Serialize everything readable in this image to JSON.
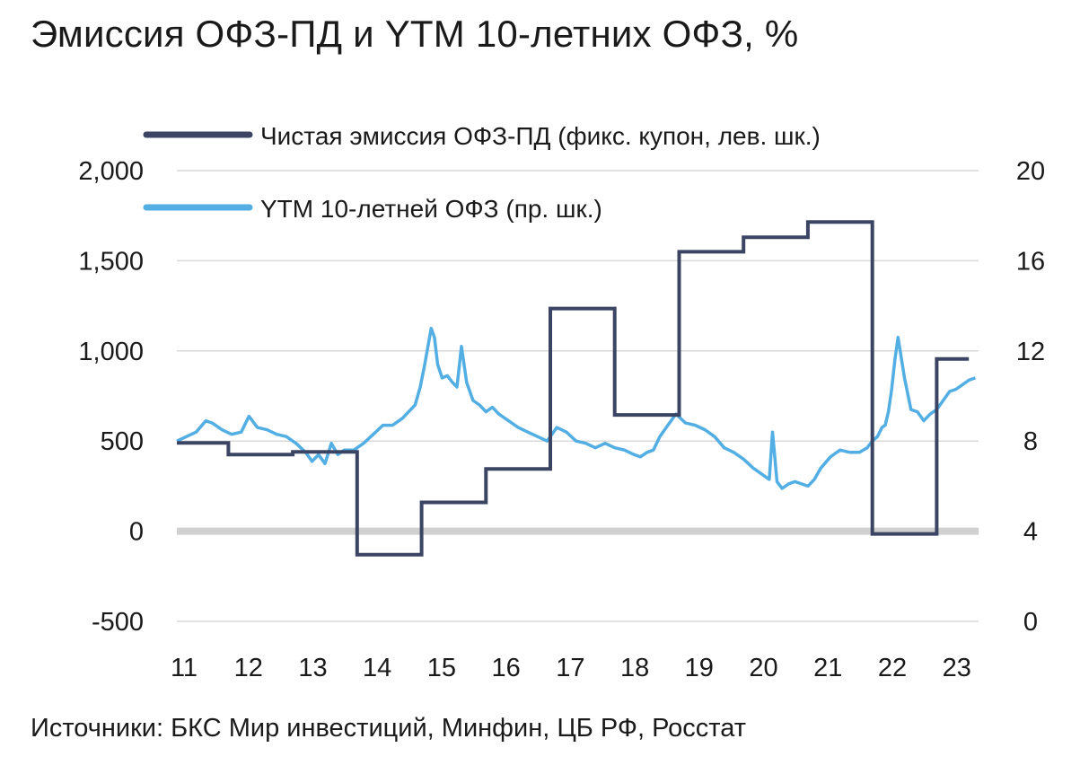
{
  "title": "Эмиссия ОФЗ-ПД и YTM 10-летних ОФЗ, %",
  "source": "Источники: БКС Мир инвестиций, Минфин, ЦБ РФ, Росстат",
  "colors": {
    "emission": "#3b4563",
    "ytm": "#52aee3",
    "grid": "#d9d9d9",
    "zero": "#d0d0d0"
  },
  "chart_data": {
    "type": "line",
    "x_ticks": [
      "11",
      "12",
      "13",
      "14",
      "15",
      "16",
      "17",
      "18",
      "19",
      "20",
      "21",
      "22",
      "23"
    ],
    "xlim": [
      2011,
      2023.45
    ],
    "y_left": {
      "ylim": [
        -500,
        2000
      ],
      "ticks": [
        "-500",
        "0",
        "500",
        "1,000",
        "1,500",
        "2,000"
      ],
      "tick_values": [
        -500,
        0,
        500,
        1000,
        1500,
        2000
      ]
    },
    "y_right": {
      "ylim": [
        0,
        20
      ],
      "ticks": [
        "0",
        "4",
        "8",
        "12",
        "16",
        "20"
      ],
      "tick_values": [
        0,
        4,
        8,
        12,
        16,
        20
      ]
    },
    "legend_placement": "top",
    "grid": true,
    "series": [
      {
        "name": "Чистая эмиссия ОФЗ-ПД (фикс. купон, лев. шк.)",
        "axis": "left",
        "style": "step",
        "x": [
          2011.0,
          2011.8,
          2011.8,
          2012.8,
          2012.8,
          2013.8,
          2013.8,
          2014.8,
          2014.8,
          2015.8,
          2015.8,
          2016.8,
          2016.8,
          2017.8,
          2017.8,
          2018.8,
          2018.8,
          2019.8,
          2019.8,
          2020.8,
          2020.8,
          2021.8,
          2021.8,
          2022.8,
          2022.8,
          2023.3
        ],
        "values": [
          490,
          490,
          425,
          425,
          440,
          440,
          -130,
          -130,
          160,
          160,
          345,
          345,
          1235,
          1235,
          645,
          645,
          1550,
          1550,
          1630,
          1630,
          1715,
          1715,
          -15,
          -15,
          955,
          955
        ]
      },
      {
        "name": "YTM 10-летней ОФЗ (пр. шк.)",
        "axis": "right",
        "x": [
          2011.0,
          2011.15,
          2011.3,
          2011.45,
          2011.55,
          2011.7,
          2011.85,
          2012.0,
          2012.12,
          2012.25,
          2012.4,
          2012.55,
          2012.7,
          2012.85,
          2013.0,
          2013.1,
          2013.2,
          2013.3,
          2013.4,
          2013.5,
          2013.6,
          2013.75,
          2013.9,
          2014.05,
          2014.2,
          2014.35,
          2014.5,
          2014.6,
          2014.7,
          2014.78,
          2014.85,
          2014.9,
          2014.95,
          2015.0,
          2015.05,
          2015.12,
          2015.2,
          2015.28,
          2015.35,
          2015.42,
          2015.5,
          2015.6,
          2015.7,
          2015.8,
          2015.9,
          2016.0,
          2016.15,
          2016.3,
          2016.45,
          2016.6,
          2016.75,
          2016.9,
          2017.05,
          2017.2,
          2017.35,
          2017.5,
          2017.65,
          2017.8,
          2017.95,
          2018.1,
          2018.2,
          2018.3,
          2018.4,
          2018.5,
          2018.6,
          2018.75,
          2018.9,
          2019.05,
          2019.2,
          2019.35,
          2019.5,
          2019.65,
          2019.8,
          2019.95,
          2020.05,
          2020.15,
          2020.2,
          2020.25,
          2020.32,
          2020.4,
          2020.5,
          2020.6,
          2020.7,
          2020.8,
          2020.9,
          2021.0,
          2021.15,
          2021.3,
          2021.45,
          2021.6,
          2021.72,
          2021.8,
          2021.88,
          2021.95,
          2022.0,
          2022.05,
          2022.1,
          2022.15,
          2022.2,
          2022.3,
          2022.4,
          2022.5,
          2022.6,
          2022.7,
          2022.8,
          2022.9,
          2023.0,
          2023.1,
          2023.2,
          2023.3,
          2023.4
        ],
        "values": [
          8.0,
          8.2,
          8.4,
          8.9,
          8.8,
          8.5,
          8.3,
          8.4,
          9.1,
          8.6,
          8.5,
          8.3,
          8.2,
          7.9,
          7.5,
          7.1,
          7.4,
          7.0,
          7.9,
          7.4,
          7.6,
          7.6,
          7.9,
          8.3,
          8.7,
          8.7,
          9.0,
          9.3,
          9.6,
          10.4,
          11.4,
          12.2,
          13.0,
          12.6,
          11.4,
          10.8,
          10.9,
          10.6,
          10.4,
          12.2,
          10.6,
          9.8,
          9.6,
          9.3,
          9.5,
          9.2,
          8.9,
          8.6,
          8.4,
          8.2,
          8.0,
          8.6,
          8.4,
          8.0,
          7.9,
          7.7,
          7.9,
          7.7,
          7.6,
          7.4,
          7.3,
          7.5,
          7.6,
          8.2,
          8.6,
          9.2,
          8.8,
          8.7,
          8.5,
          8.2,
          7.7,
          7.5,
          7.2,
          6.8,
          6.6,
          6.4,
          6.3,
          8.4,
          6.2,
          5.9,
          6.1,
          6.2,
          6.1,
          6.0,
          6.3,
          6.8,
          7.3,
          7.6,
          7.5,
          7.5,
          7.7,
          8.0,
          8.2,
          8.6,
          8.7,
          9.3,
          10.3,
          11.6,
          12.6,
          10.8,
          9.4,
          9.3,
          8.9,
          9.2,
          9.4,
          9.8,
          10.2,
          10.3,
          10.5,
          10.7,
          10.8
        ]
      }
    ]
  }
}
